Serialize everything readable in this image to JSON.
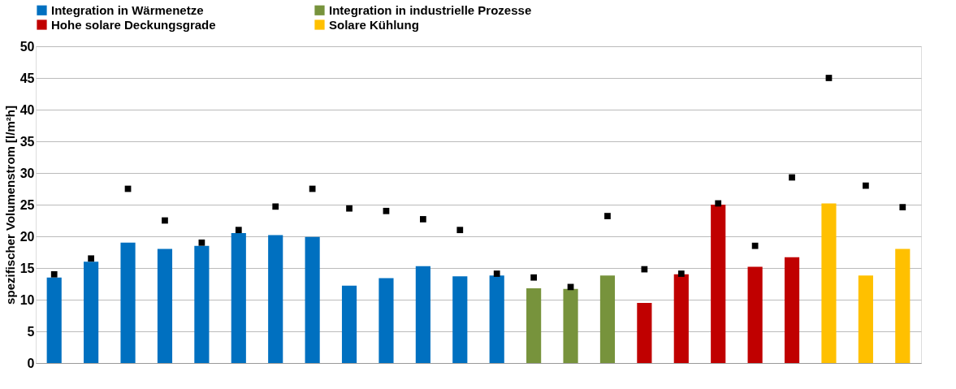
{
  "chart_data": {
    "type": "bar",
    "ylabel": "spezifischer Volumenstrom [l/m²h]",
    "categories": [
      null,
      null,
      null,
      null,
      null,
      null,
      null,
      null,
      null,
      null,
      null,
      null,
      null,
      null,
      null,
      null,
      null,
      null,
      null,
      null,
      null,
      null,
      null,
      null
    ],
    "series": [
      {
        "name": "Integration in Wärmenetze",
        "color": "#0070c0",
        "values": [
          13.5,
          16,
          19,
          18,
          18.5,
          20.5,
          20.2,
          19.9,
          12.2,
          13.4,
          15.3,
          13.7,
          13.8,
          null,
          null,
          null,
          null,
          null,
          null,
          null,
          null,
          null,
          null,
          null
        ]
      },
      {
        "name": "Integration in industrielle Prozesse",
        "color": "#77933c",
        "values": [
          null,
          null,
          null,
          null,
          null,
          null,
          null,
          null,
          null,
          null,
          null,
          null,
          null,
          11.8,
          11.7,
          13.8,
          null,
          null,
          null,
          null,
          null,
          null,
          null,
          null
        ]
      },
      {
        "name": "Hohe solare Deckungsgrade",
        "color": "#c00000",
        "values": [
          null,
          null,
          null,
          null,
          null,
          null,
          null,
          null,
          null,
          null,
          null,
          null,
          null,
          null,
          null,
          null,
          9.5,
          14,
          25,
          15.2,
          16.7,
          null,
          null,
          null
        ]
      },
      {
        "name": "Solare Kühlung",
        "color": "#ffc000",
        "values": [
          null,
          null,
          null,
          null,
          null,
          null,
          null,
          null,
          null,
          null,
          null,
          null,
          null,
          null,
          null,
          null,
          null,
          null,
          null,
          null,
          null,
          25.2,
          13.8,
          18
        ]
      },
      {
        "type": "scatter",
        "color": "#000000",
        "marker": "square",
        "values": [
          14,
          16.5,
          27.5,
          22.5,
          19,
          21,
          24.7,
          27.5,
          24.4,
          24,
          22.7,
          21,
          14.1,
          13.5,
          12,
          23.2,
          14.8,
          14.1,
          25.2,
          18.5,
          29.3,
          45,
          28,
          24.6
        ]
      }
    ],
    "ylim": [
      0,
      50
    ],
    "yticks": [
      0,
      5,
      10,
      15,
      20,
      25,
      30,
      35,
      40,
      45,
      50
    ],
    "grid": "y",
    "legend": "top"
  }
}
